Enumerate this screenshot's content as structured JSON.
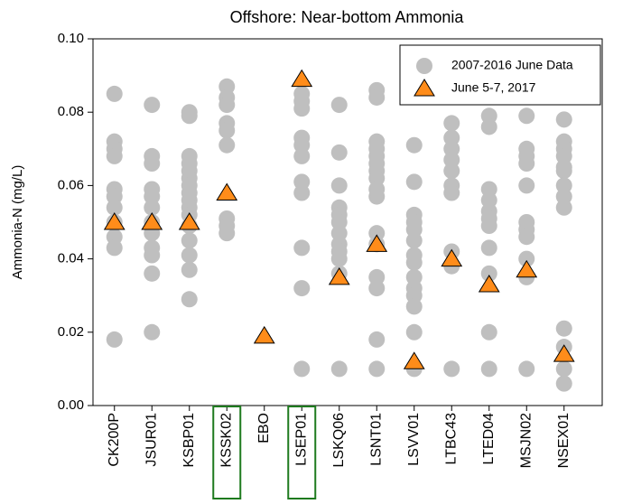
{
  "chart_data": {
    "type": "scatter",
    "title": "Offshore: Near-bottom Ammonia",
    "y_label": "Ammonia-N (mg/L)",
    "categories": [
      "CK200P",
      "JSUR01",
      "KSBP01",
      "KSSK02",
      "EBO",
      "LSEP01",
      "LSKQ06",
      "LSNT01",
      "LSVV01",
      "LTBC43",
      "LTED04",
      "MSJN02",
      "NSEX01"
    ],
    "series": [
      {
        "name": "2007-2016 June Data",
        "color": "#bfbfbf",
        "marker": "circle",
        "values": [
          [
            0.085,
            0.072,
            0.07,
            0.068,
            0.059,
            0.057,
            0.054,
            0.05,
            0.046,
            0.043,
            0.018
          ],
          [
            0.082,
            0.068,
            0.066,
            0.059,
            0.057,
            0.054,
            0.05,
            0.047,
            0.043,
            0.041,
            0.036,
            0.02
          ],
          [
            0.08,
            0.079,
            0.068,
            0.066,
            0.064,
            0.062,
            0.06,
            0.058,
            0.056,
            0.054,
            0.052,
            0.049,
            0.045,
            0.041,
            0.037,
            0.029
          ],
          [
            0.087,
            0.084,
            0.082,
            0.077,
            0.075,
            0.071,
            0.051,
            0.049,
            0.047
          ],
          [],
          [
            0.085,
            0.083,
            0.081,
            0.073,
            0.071,
            0.068,
            0.061,
            0.058,
            0.043,
            0.032,
            0.01
          ],
          [
            0.082,
            0.069,
            0.06,
            0.054,
            0.052,
            0.05,
            0.047,
            0.044,
            0.042,
            0.04,
            0.036,
            0.01
          ],
          [
            0.086,
            0.084,
            0.072,
            0.07,
            0.068,
            0.066,
            0.064,
            0.062,
            0.059,
            0.057,
            0.047,
            0.044,
            0.035,
            0.032,
            0.018,
            0.01
          ],
          [
            0.071,
            0.061,
            0.052,
            0.05,
            0.048,
            0.045,
            0.041,
            0.039,
            0.035,
            0.032,
            0.03,
            0.027,
            0.02,
            0.01
          ],
          [
            0.077,
            0.073,
            0.07,
            0.067,
            0.064,
            0.06,
            0.058,
            0.042,
            0.038,
            0.01
          ],
          [
            0.079,
            0.076,
            0.059,
            0.056,
            0.053,
            0.051,
            0.049,
            0.043,
            0.036,
            0.02,
            0.01
          ],
          [
            0.079,
            0.07,
            0.068,
            0.066,
            0.06,
            0.05,
            0.048,
            0.046,
            0.04,
            0.035,
            0.01
          ],
          [
            0.078,
            0.072,
            0.07,
            0.068,
            0.065,
            0.064,
            0.06,
            0.057,
            0.054,
            0.021,
            0.016,
            0.01,
            0.006
          ]
        ]
      },
      {
        "name": "June 5-7, 2017",
        "color": "#ff8c1a",
        "marker": "triangle",
        "values": [
          0.05,
          0.05,
          0.05,
          0.058,
          0.019,
          0.089,
          0.035,
          0.044,
          0.012,
          0.04,
          0.033,
          0.037,
          0.014
        ]
      }
    ],
    "ylim": [
      0,
      0.1
    ],
    "yticks": [
      {
        "value": 0,
        "label": "0.00"
      },
      {
        "value": 0.02,
        "label": "0.02"
      },
      {
        "value": 0.04,
        "label": "0.04"
      },
      {
        "value": 0.06,
        "label": "0.06"
      },
      {
        "value": 0.08,
        "label": "0.08"
      },
      {
        "value": 0.1,
        "label": "0.10"
      }
    ],
    "grid": false,
    "legend": "upper right",
    "highlight": {
      "indices": [
        3,
        5
      ],
      "color": "#1e7a1e"
    }
  }
}
